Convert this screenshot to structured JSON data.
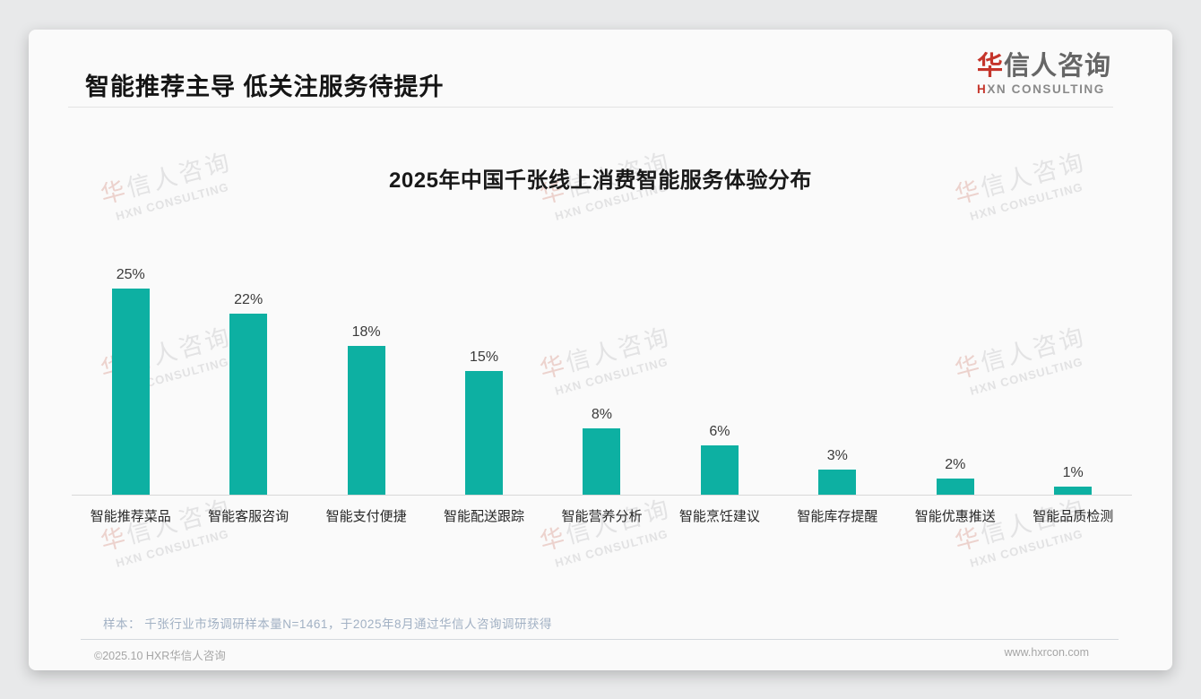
{
  "page": {
    "header_title": "智能推荐主导 低关注服务待提升",
    "logo": {
      "cn_first": "华",
      "cn_rest": "信人咨询",
      "en_first": "H",
      "en_rest": "XN CONSULTING"
    },
    "watermark": {
      "cn_first": "华",
      "cn_rest": "信人咨询",
      "en": "HXN CONSULTING"
    },
    "footnote": "样本： 千张行业市场调研样本量N=1461，于2025年8月通过华信人咨询调研获得",
    "footer_left": "©2025.10 HXR华信人咨询",
    "footer_right": "www.hxrcon.com"
  },
  "colors": {
    "bar_teal": "#0db0a2",
    "accent_red": "#c5352b",
    "note_blue_gray": "#a2b1c4"
  },
  "chart_data": {
    "type": "bar",
    "title": "2025年中国千张线上消费智能服务体验分布",
    "categories": [
      "智能推荐菜品",
      "智能客服咨询",
      "智能支付便捷",
      "智能配送跟踪",
      "智能营养分析",
      "智能烹饪建议",
      "智能库存提醒",
      "智能优惠推送",
      "智能品质检测"
    ],
    "values": [
      25,
      22,
      18,
      15,
      8,
      6,
      3,
      2,
      1
    ],
    "value_labels": [
      "25%",
      "22%",
      "18%",
      "15%",
      "8%",
      "6%",
      "3%",
      "2%",
      "1%"
    ],
    "unit": "%",
    "bar_color": "#0db0a2",
    "xlabel": "",
    "ylabel": "",
    "ylim": [
      0,
      25
    ],
    "grid": false,
    "legend": "none",
    "value_labels_position": "above-bars"
  }
}
